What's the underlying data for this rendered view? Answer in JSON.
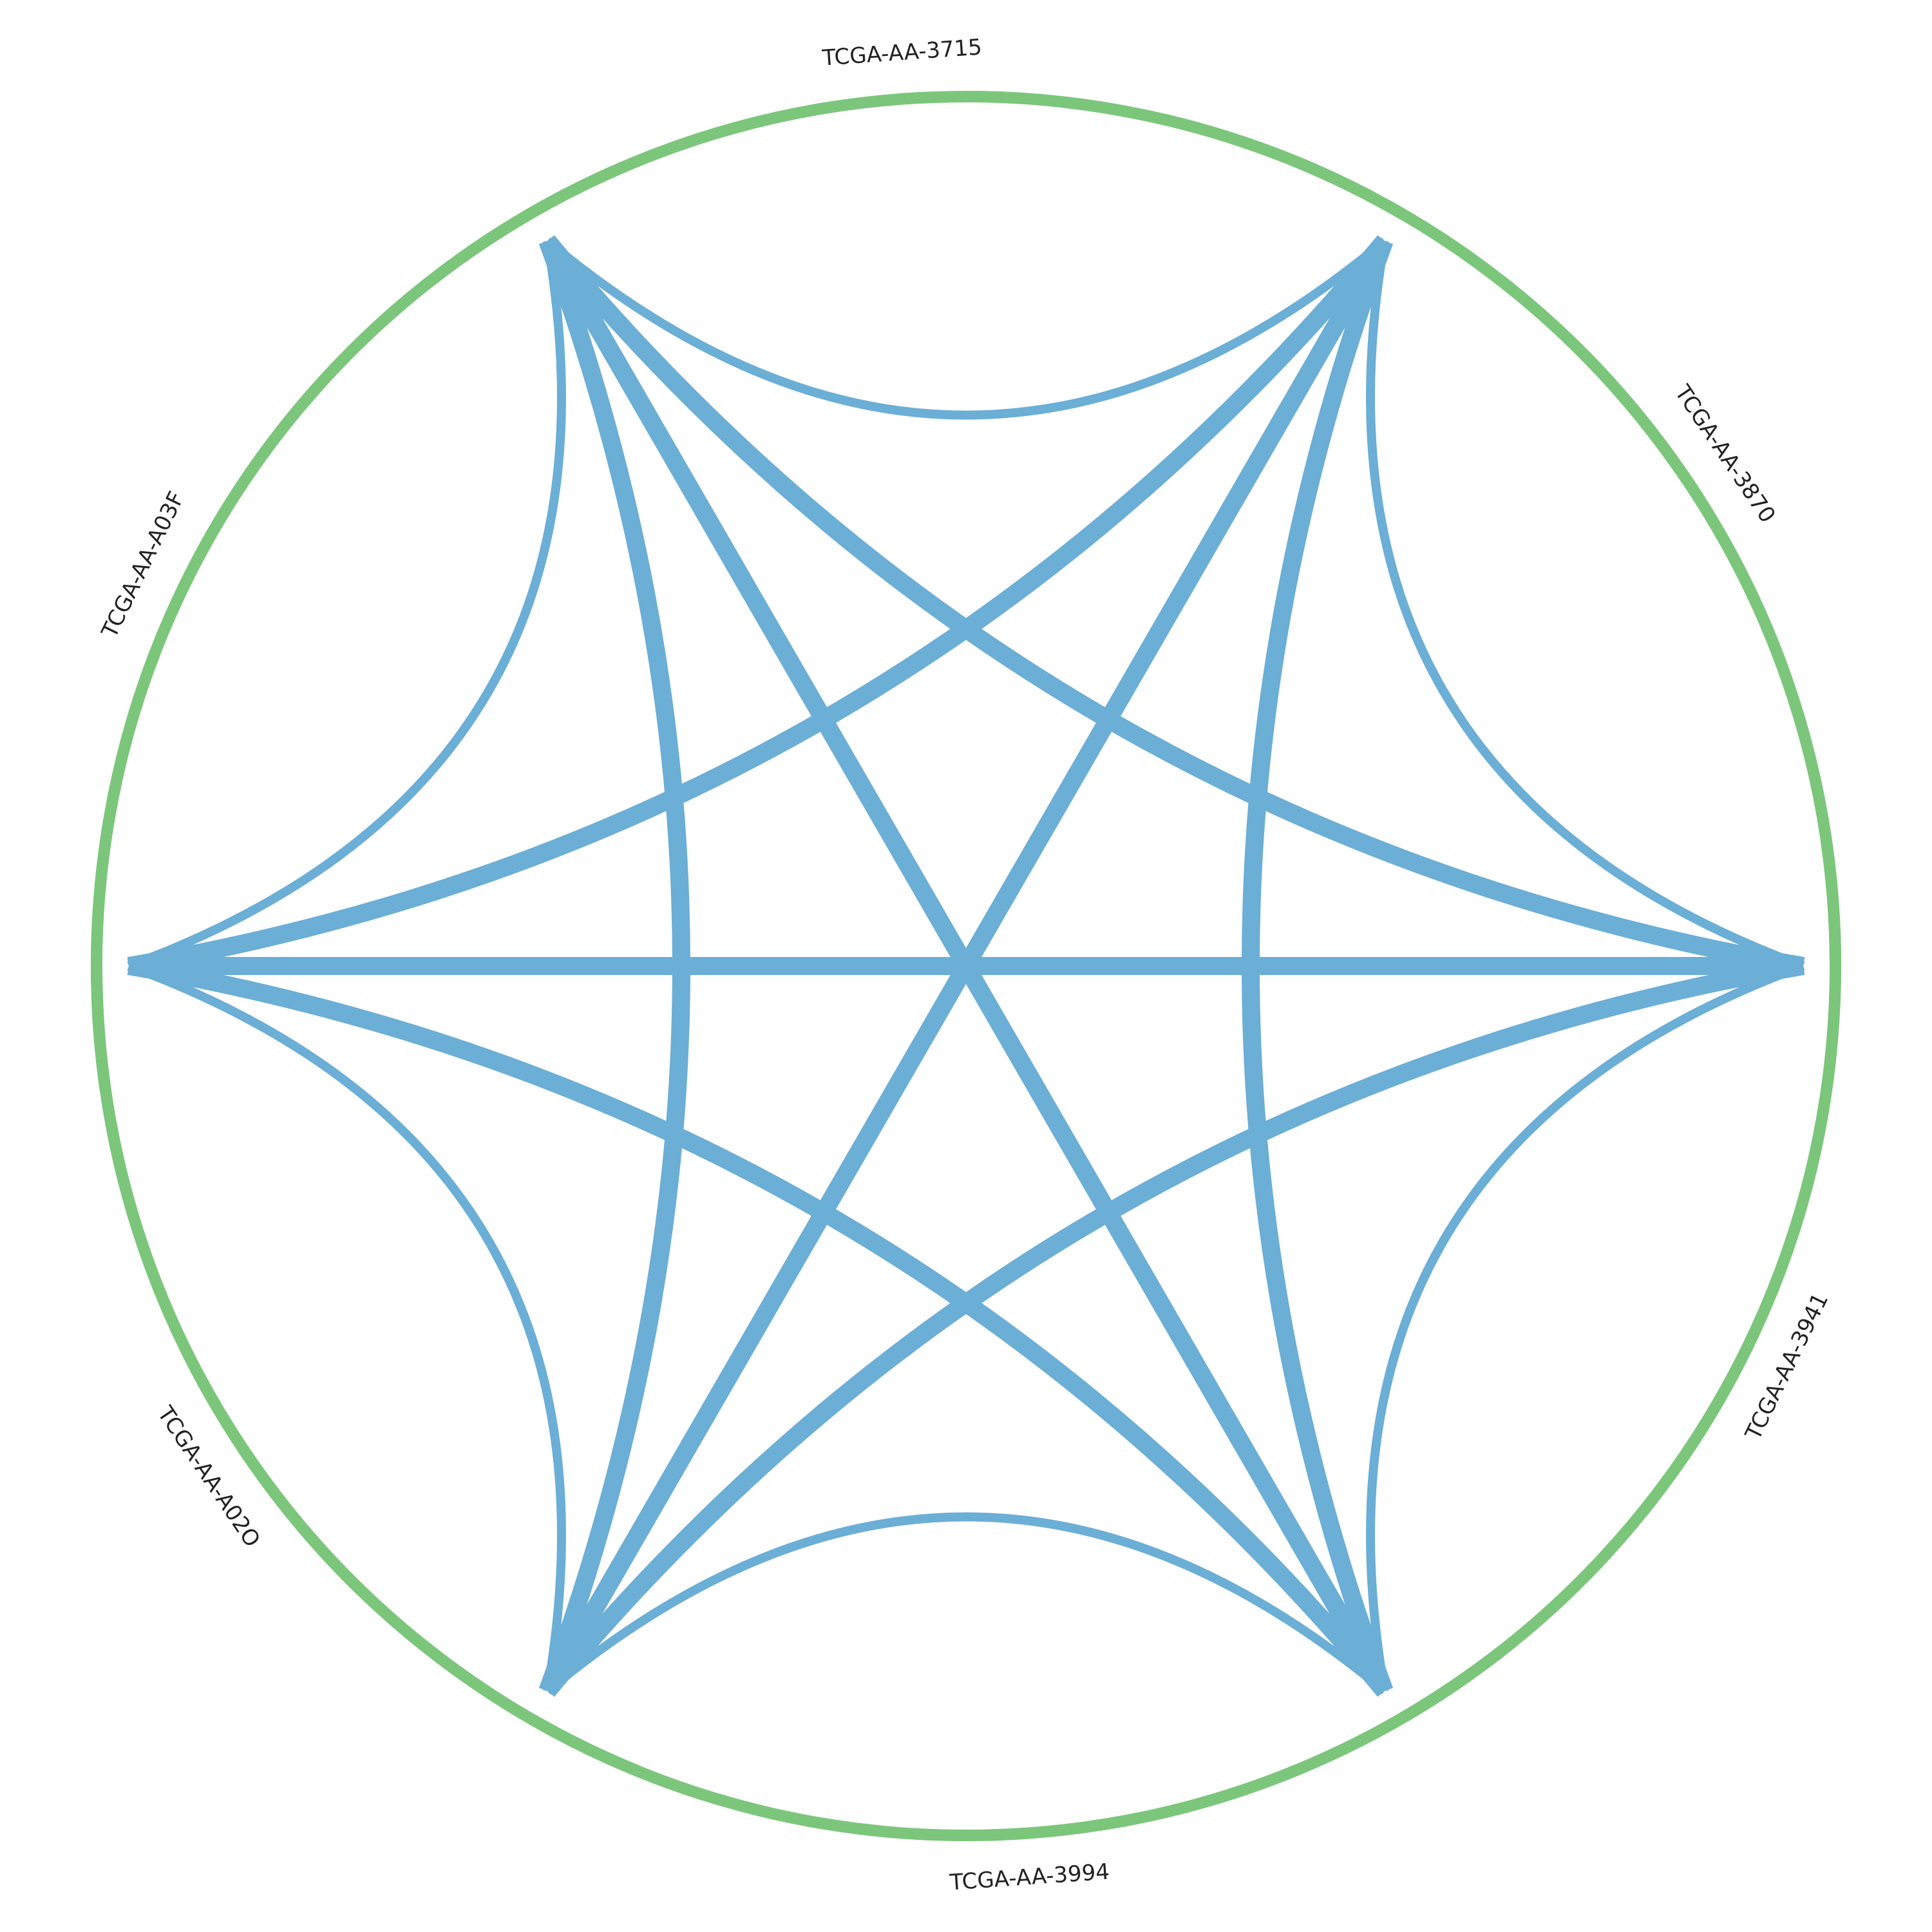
{
  "chart_data": {
    "type": "chord",
    "segment_color": "#7bc67b",
    "ribbon_color": "#6baed6",
    "segments": [
      {
        "name": "TCGA-AA-3715"
      },
      {
        "name": "TCGA-AA-3870"
      },
      {
        "name": "TCGA-AA-3941"
      },
      {
        "name": "TCGA-AA-3994"
      },
      {
        "name": "TCGA-AA-A02O"
      },
      {
        "name": "TCGA-AA-A03F"
      }
    ],
    "links": [
      {
        "source": "TCGA-AA-3715",
        "target": "TCGA-AA-3870",
        "value": 1
      },
      {
        "source": "TCGA-AA-3715",
        "target": "TCGA-AA-3941",
        "value": 2
      },
      {
        "source": "TCGA-AA-3715",
        "target": "TCGA-AA-3994",
        "value": 2
      },
      {
        "source": "TCGA-AA-3715",
        "target": "TCGA-AA-A02O",
        "value": 2
      },
      {
        "source": "TCGA-AA-3715",
        "target": "TCGA-AA-A03F",
        "value": 1
      },
      {
        "source": "TCGA-AA-3870",
        "target": "TCGA-AA-3941",
        "value": 1
      },
      {
        "source": "TCGA-AA-3870",
        "target": "TCGA-AA-3994",
        "value": 2
      },
      {
        "source": "TCGA-AA-3870",
        "target": "TCGA-AA-A02O",
        "value": 2
      },
      {
        "source": "TCGA-AA-3870",
        "target": "TCGA-AA-A03F",
        "value": 2
      },
      {
        "source": "TCGA-AA-3941",
        "target": "TCGA-AA-3994",
        "value": 1
      },
      {
        "source": "TCGA-AA-3941",
        "target": "TCGA-AA-A02O",
        "value": 2
      },
      {
        "source": "TCGA-AA-3941",
        "target": "TCGA-AA-A03F",
        "value": 2
      },
      {
        "source": "TCGA-AA-3994",
        "target": "TCGA-AA-A02O",
        "value": 1
      },
      {
        "source": "TCGA-AA-3994",
        "target": "TCGA-AA-A03F",
        "value": 2
      },
      {
        "source": "TCGA-AA-A02O",
        "target": "TCGA-AA-A03F",
        "value": 1
      }
    ]
  }
}
